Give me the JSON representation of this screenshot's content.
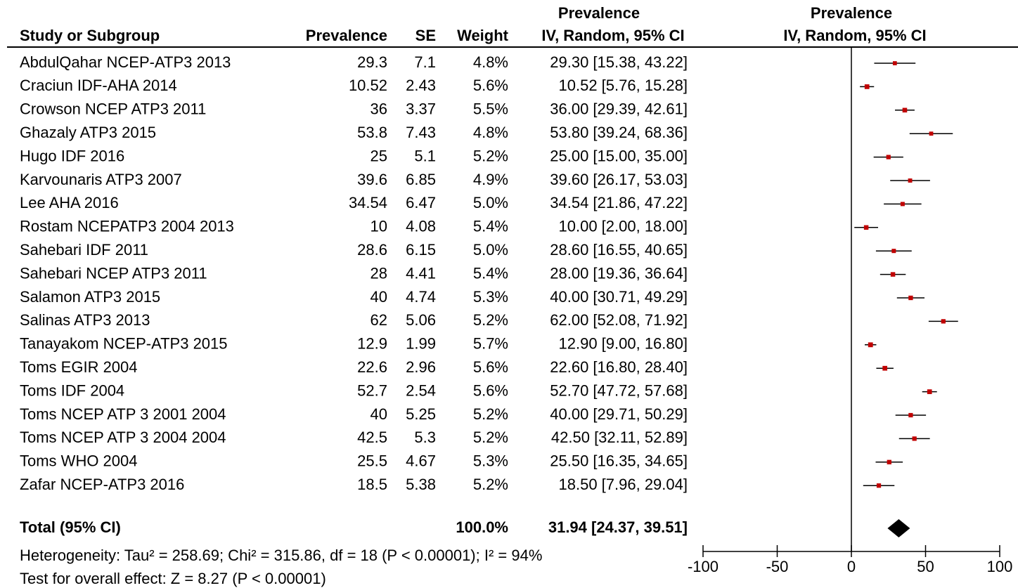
{
  "chart_data": {
    "type": "forest",
    "headers": {
      "study": "Study or Subgroup",
      "prevalence": "Prevalence",
      "se": "SE",
      "weight": "Weight",
      "ci": [
        "Prevalence",
        "IV, Random, 95% CI"
      ],
      "plot": [
        "Prevalence",
        "IV, Random, 95% CI"
      ]
    },
    "categories": [
      "AbdulQahar NCEP-ATP3 2013",
      "Craciun IDF-AHA 2014",
      "Crowson NCEP ATP3 2011",
      "Ghazaly ATP3 2015",
      "Hugo IDF 2016",
      "Karvounaris ATP3 2007",
      "Lee AHA 2016",
      "Rostam NCEPATP3 2004 2013",
      "Sahebari IDF 2011",
      "Sahebari NCEP ATP3 2011",
      "Salamon ATP3 2015",
      "Salinas ATP3 2013",
      "Tanayakom NCEP-ATP3 2015",
      "Toms EGIR 2004",
      "Toms IDF 2004",
      "Toms NCEP ATP 3 2001 2004",
      "Toms NCEP ATP 3 2004 2004",
      "Toms WHO 2004",
      "Zafar NCEP-ATP3 2016"
    ],
    "prevalence": [
      29.3,
      10.52,
      36,
      53.8,
      25,
      39.6,
      34.54,
      10,
      28.6,
      28,
      40,
      62,
      12.9,
      22.6,
      52.7,
      40,
      42.5,
      25.5,
      18.5
    ],
    "se": [
      7.1,
      2.43,
      3.37,
      7.43,
      5.1,
      6.85,
      6.47,
      4.08,
      6.15,
      4.41,
      4.74,
      5.06,
      1.99,
      2.96,
      2.54,
      5.25,
      5.3,
      4.67,
      5.38
    ],
    "weights": [
      4.8,
      5.6,
      5.5,
      4.8,
      5.2,
      4.9,
      5.0,
      5.4,
      5.0,
      5.4,
      5.3,
      5.2,
      5.7,
      5.6,
      5.6,
      5.2,
      5.2,
      5.3,
      5.2
    ],
    "weight_labels": [
      "4.8%",
      "5.6%",
      "5.5%",
      "4.8%",
      "5.2%",
      "4.9%",
      "5.0%",
      "5.4%",
      "5.0%",
      "5.4%",
      "5.3%",
      "5.2%",
      "5.7%",
      "5.6%",
      "5.6%",
      "5.2%",
      "5.2%",
      "5.3%",
      "5.2%"
    ],
    "estimates": [
      29.3,
      10.52,
      36.0,
      53.8,
      25.0,
      39.6,
      34.54,
      10.0,
      28.6,
      28.0,
      40.0,
      62.0,
      12.9,
      22.6,
      52.7,
      40.0,
      42.5,
      25.5,
      18.5
    ],
    "lower": [
      15.38,
      5.76,
      29.39,
      39.24,
      15.0,
      26.17,
      21.86,
      2.0,
      16.55,
      19.36,
      30.71,
      52.08,
      9.0,
      16.8,
      47.72,
      29.71,
      32.11,
      16.35,
      7.96
    ],
    "upper": [
      43.22,
      15.28,
      42.61,
      68.36,
      35.0,
      53.03,
      47.22,
      18.0,
      40.65,
      36.64,
      49.29,
      71.92,
      16.8,
      28.4,
      57.68,
      50.29,
      52.89,
      34.65,
      29.04
    ],
    "ci_labels": [
      "29.30 [15.38, 43.22]",
      "10.52 [5.76, 15.28]",
      "36.00 [29.39, 42.61]",
      "53.80 [39.24, 68.36]",
      "25.00 [15.00, 35.00]",
      "39.60 [26.17, 53.03]",
      "34.54 [21.86, 47.22]",
      "10.00 [2.00, 18.00]",
      "28.60 [16.55, 40.65]",
      "28.00 [19.36, 36.64]",
      "40.00 [30.71, 49.29]",
      "62.00 [52.08, 71.92]",
      "12.90 [9.00, 16.80]",
      "22.60 [16.80, 28.40]",
      "52.70 [47.72, 57.68]",
      "40.00 [29.71, 50.29]",
      "42.50 [32.11, 52.89]",
      "25.50 [16.35, 34.65]",
      "18.50 [7.96, 29.04]"
    ],
    "color": "#c00000",
    "total": {
      "label": "Total (95% CI)",
      "weight": 100.0,
      "weight_label": "100.0%",
      "estimate": 31.94,
      "lower": 24.37,
      "upper": 39.51,
      "ci_label": "31.94 [24.37, 39.51]"
    },
    "notes": [
      "Heterogeneity: Tau² = 258.69; Chi² = 315.86, df = 18 (P < 0.00001); I² = 94%",
      "Test for overall effect: Z = 8.27 (P < 0.00001)"
    ],
    "xlim": [
      -100,
      100
    ],
    "xticks": [
      -100,
      -50,
      0,
      50,
      100
    ]
  }
}
